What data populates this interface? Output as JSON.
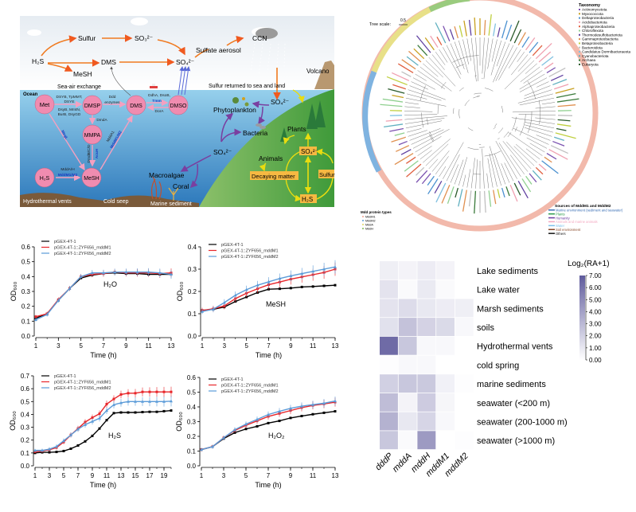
{
  "diagram": {
    "air": {
      "sulfur": "Sulfur",
      "so3": "SO₃²⁻",
      "h2s": "H₂S",
      "dms": "DMS",
      "so4": "SO₄²⁻",
      "mesh": "MeSH",
      "sulfate_aerosol": "Sulfate aerosol",
      "ccn": "CCN",
      "volcano": "Volcano",
      "sea_air": "Sea-air exchange",
      "returned": "Sulfur returned to sea and land"
    },
    "ocean": {
      "label": "Ocean",
      "met": "Met",
      "dmsp": "DMSP",
      "dms": "DMS",
      "dmso": "DMSO",
      "mmpa": "MMPA",
      "h2s": "H₂S",
      "mesh": "MeSH",
      "enz_dsyb_1": "DSYB, TpMMT,",
      "enz_dsyb_2": "DSYE",
      "enz_dsyb_3": "DsyB, MmtN,",
      "enz_dsyb_4": "BurB, DsyGD",
      "enz_ddd_1": "Ddd",
      "enz_ddd_2": "enzymes",
      "enz_dso_1": "DdhA, DsoB,",
      "enz_tmm": "Tmm",
      "enz_dora": "DorA",
      "enz_dmda": "DmdA",
      "enz_megl": "MegL",
      "enz_dmdbcd": "DmdB/C/D",
      "enz_acuh": "AcuH",
      "enz_mdda1": "MddA1",
      "enz_mddm_diag": "MddM1/M2",
      "enz_mddah": "MddA/H",
      "enz_mddm": "MddM1/M2",
      "hydrothermal": "Hydrothermal vents",
      "cold_seep": "Cold seep",
      "marine_sediment": "Marine sediment",
      "macroalgae": "Macroalgae",
      "coral": "Coral",
      "phytoplankton": "Phytoplankton",
      "bacteria": "Bacteria",
      "so4_sea": "SO₄²⁻",
      "so4_fall": "SO₄²⁻"
    },
    "land": {
      "plants": "Plants",
      "animals": "Animals",
      "so4": "SO₄²⁻",
      "decaying": "Decaying matter",
      "sulfur": "Sulfur",
      "h2s": "H₂S"
    },
    "colors": {
      "sky": "#f4f6f8",
      "ocean_top": "#8fcbe8",
      "ocean_bottom": "#2f7fc0",
      "circle": "#f08cb0",
      "land": "#4a9a3a",
      "orange_arrow": "#f07a20",
      "pink_arrow": "#f4a0c0",
      "purple_arrow": "#7a3fa0",
      "yellow_arrow": "#f0e020",
      "box": "#f6b942"
    }
  },
  "tree": {
    "scale_label": "Tree scale:",
    "scale_value": "0.5",
    "taxonomy_title": "Taxonomy",
    "taxonomy": [
      {
        "name": "Actinomycetota",
        "color": "#7b52b0"
      },
      {
        "name": "Myxococcota",
        "color": "#c8a020"
      },
      {
        "name": "Deltaproteobacteria",
        "color": "#4a90d0"
      },
      {
        "name": "Acidobacteriota",
        "color": "#f0a0b0"
      },
      {
        "name": "Alphaproteobacteria",
        "color": "#e06040"
      },
      {
        "name": "Chloroflexota",
        "color": "#90d090"
      },
      {
        "name": "Thermodesulfobacteriota",
        "color": "#6040a0"
      },
      {
        "name": "Gammaproteobacteria",
        "color": "#e09050"
      },
      {
        "name": "Betaproteobacteria",
        "color": "#c0d040"
      },
      {
        "name": "Bacteroidota",
        "color": "#c0c0c0"
      },
      {
        "name": "Candidatus Dormibacteraeota",
        "color": "#80c0e0"
      },
      {
        "name": "Cyanobacteriota",
        "color": "#60b0c0"
      },
      {
        "name": "Archaea",
        "color": "#3a7a3a"
      },
      {
        "name": "Eukaryota",
        "color": "#2a5a2a"
      }
    ],
    "types_title": "Mdd protein types",
    "types": [
      {
        "name": "MddM1",
        "color": "#f2b9ab"
      },
      {
        "name": "MddM2",
        "color": "#7fb3e0"
      },
      {
        "name": "MddA",
        "color": "#e8e088"
      },
      {
        "name": "MddH",
        "color": "#9acb7e"
      }
    ],
    "sources_title": "Sources of MddM1 and MddM2",
    "sources": [
      {
        "name": "Marine environment (sediment and seawater)",
        "color": "#3a6fb5"
      },
      {
        "name": "Plants",
        "color": "#2a9a4a"
      },
      {
        "name": "Humanity",
        "color": "#6a3aa0"
      },
      {
        "name": "Animals and marine animals",
        "color": "#f4a8c0"
      },
      {
        "name": "Water",
        "color": "#7ec0ec"
      },
      {
        "name": "Soil environment",
        "color": "#8a4a2a"
      },
      {
        "name": "Others",
        "color": "#111111"
      }
    ]
  },
  "chart_data": [
    {
      "type": "line",
      "annotation": "H₂O",
      "xlabel": "Time (h)",
      "ylabel": "OD₆₀₀",
      "xlim": [
        1,
        13
      ],
      "ylim": [
        0,
        0.6
      ],
      "xticks": [
        1,
        3,
        5,
        7,
        9,
        11,
        13
      ],
      "yticks": [
        0.0,
        0.1,
        0.2,
        0.3,
        0.4,
        0.5,
        0.6
      ],
      "legend": "top-left",
      "x": [
        1,
        2,
        3,
        4,
        5,
        6,
        7,
        8,
        9,
        10,
        11,
        12,
        13
      ],
      "series": [
        {
          "name": "pGEX-4T-1",
          "color": "#000000",
          "values": [
            0.12,
            0.15,
            0.24,
            0.32,
            0.39,
            0.41,
            0.42,
            0.425,
            0.42,
            0.42,
            0.415,
            0.415,
            0.415
          ]
        },
        {
          "name": "pGEX-4T-1::ZYF656_mddM1",
          "color": "#e8262a",
          "values": [
            0.13,
            0.15,
            0.245,
            0.32,
            0.4,
            0.415,
            0.42,
            0.43,
            0.425,
            0.425,
            0.425,
            0.42,
            0.425
          ]
        },
        {
          "name": "pGEX-4T-1::ZYF656_mddM2",
          "color": "#5b9bd8",
          "values": [
            0.11,
            0.145,
            0.24,
            0.32,
            0.4,
            0.425,
            0.425,
            0.43,
            0.43,
            0.43,
            0.43,
            0.425,
            0.415
          ]
        }
      ]
    },
    {
      "type": "line",
      "annotation": "MeSH",
      "xlabel": "Time (h)",
      "ylabel": "OD₆₀₀",
      "xlim": [
        1,
        13
      ],
      "ylim": [
        0,
        0.4
      ],
      "xticks": [
        1,
        3,
        5,
        7,
        9,
        11,
        13
      ],
      "yticks": [
        0.0,
        0.1,
        0.2,
        0.3,
        0.4
      ],
      "legend": "top-left",
      "x": [
        1,
        2,
        3,
        4,
        5,
        6,
        7,
        8,
        9,
        10,
        11,
        12,
        13
      ],
      "series": [
        {
          "name": "pGEX-4T-1",
          "color": "#000000",
          "values": [
            0.115,
            0.12,
            0.13,
            0.155,
            0.175,
            0.195,
            0.21,
            0.212,
            0.215,
            0.22,
            0.222,
            0.225,
            0.228
          ]
        },
        {
          "name": "pGEX-4T-1::ZYF656_mddM1",
          "color": "#e8262a",
          "values": [
            0.115,
            0.122,
            0.135,
            0.168,
            0.192,
            0.212,
            0.23,
            0.242,
            0.255,
            0.265,
            0.275,
            0.285,
            0.3
          ]
        },
        {
          "name": "pGEX-4T-1::ZYF656_mddM2",
          "color": "#5b9bd8",
          "values": [
            0.11,
            0.12,
            0.15,
            0.183,
            0.208,
            0.228,
            0.243,
            0.258,
            0.27,
            0.28,
            0.29,
            0.3,
            0.31
          ]
        }
      ]
    },
    {
      "type": "line",
      "annotation": "H₂S",
      "xlabel": "Time (h)",
      "ylabel": "OD₆₀₀",
      "xlim": [
        1,
        20
      ],
      "ylim": [
        0,
        0.7
      ],
      "xticks": [
        1,
        3,
        5,
        7,
        9,
        11,
        13,
        15,
        17,
        19
      ],
      "yticks": [
        0.0,
        0.1,
        0.2,
        0.3,
        0.4,
        0.5,
        0.6,
        0.7
      ],
      "legend": "top-left",
      "x": [
        1,
        2,
        3,
        4,
        5,
        6,
        7,
        8,
        9,
        10,
        11,
        12,
        13,
        14,
        15,
        16,
        17,
        18,
        19,
        20
      ],
      "series": [
        {
          "name": "pGEX-4T-1",
          "color": "#000000",
          "values": [
            0.1,
            0.105,
            0.105,
            0.108,
            0.115,
            0.133,
            0.158,
            0.19,
            0.233,
            0.29,
            0.355,
            0.41,
            0.415,
            0.415,
            0.415,
            0.418,
            0.42,
            0.42,
            0.425,
            0.43
          ]
        },
        {
          "name": "pGEX-4T-1::ZYF656_mddM1",
          "color": "#e8262a",
          "values": [
            0.11,
            0.115,
            0.125,
            0.142,
            0.185,
            0.24,
            0.29,
            0.34,
            0.375,
            0.405,
            0.48,
            0.52,
            0.555,
            0.565,
            0.565,
            0.575,
            0.575,
            0.575,
            0.575,
            0.575
          ]
        },
        {
          "name": "pGEX-4T-1::ZYF656_mddM2",
          "color": "#5b9bd8",
          "values": [
            0.12,
            0.12,
            0.13,
            0.15,
            0.195,
            0.24,
            0.285,
            0.32,
            0.345,
            0.37,
            0.43,
            0.475,
            0.49,
            0.5,
            0.5,
            0.5,
            0.5,
            0.5,
            0.5,
            0.503
          ]
        }
      ]
    },
    {
      "type": "line",
      "annotation": "H₂O₂",
      "xlabel": "Time (h)",
      "ylabel": "OD₆₀₀",
      "xlim": [
        1,
        13
      ],
      "ylim": [
        0,
        0.6
      ],
      "xticks": [
        1,
        3,
        5,
        7,
        9,
        11,
        13
      ],
      "yticks": [
        0.0,
        0.1,
        0.2,
        0.3,
        0.4,
        0.5,
        0.6
      ],
      "legend": "top-left",
      "x": [
        1,
        2,
        3,
        4,
        5,
        6,
        7,
        8,
        9,
        10,
        11,
        12,
        13
      ],
      "series": [
        {
          "name": "pGEX-4T-1",
          "color": "#000000",
          "values": [
            0.11,
            0.13,
            0.185,
            0.225,
            0.25,
            0.268,
            0.29,
            0.305,
            0.325,
            0.338,
            0.35,
            0.36,
            0.37
          ]
        },
        {
          "name": "pGEX-4T-1::ZYF656_mddM1",
          "color": "#e8262a",
          "values": [
            0.11,
            0.13,
            0.19,
            0.24,
            0.275,
            0.305,
            0.335,
            0.355,
            0.375,
            0.395,
            0.41,
            0.42,
            0.432
          ]
        },
        {
          "name": "pGEX-4T-1::ZYF656_mddM2",
          "color": "#5b9bd8",
          "values": [
            0.11,
            0.13,
            0.19,
            0.245,
            0.283,
            0.315,
            0.348,
            0.37,
            0.39,
            0.405,
            0.415,
            0.425,
            0.44
          ]
        }
      ]
    },
    {
      "type": "heatmap",
      "colorbar_title": "Log₂(RA+1)",
      "range": [
        0,
        7
      ],
      "colorbar_ticks": [
        "7.00",
        "6.00",
        "5.00",
        "4.00",
        "3.00",
        "2.00",
        "1.00",
        "0.00"
      ],
      "color_low": "#ffffff",
      "color_high": "#5f5b9c",
      "columns": [
        "dddP",
        "mddA",
        "mddH",
        "mddM1",
        "mddM2"
      ],
      "rows": [
        "Lake sediments",
        "Lake water",
        "Marsh sediments",
        "soils",
        "Hydrothermal vents",
        "cold spring",
        "marine sediments",
        "seawater (<200 m)",
        "seawater (200-1000 m)",
        "seawater (>1000 m)"
      ],
      "values": [
        [
          0.7,
          0.5,
          0.8,
          0.5,
          null
        ],
        [
          1.2,
          0.2,
          0.9,
          0.2,
          null
        ],
        [
          1.2,
          1.5,
          1.0,
          0.8,
          0.7
        ],
        [
          1.3,
          2.6,
          1.9,
          1.6,
          0.3
        ],
        [
          6.3,
          2.4,
          0.3,
          0.3,
          null
        ],
        [
          0.1,
          0.3,
          0.3,
          null,
          null
        ],
        [
          2.0,
          2.4,
          2.3,
          0.6,
          0.1
        ],
        [
          2.8,
          0.5,
          2.2,
          0.4,
          null
        ],
        [
          3.3,
          1.0,
          1.8,
          0.3,
          null
        ],
        [
          2.4,
          0.2,
          4.3,
          null,
          0.1
        ]
      ]
    }
  ]
}
